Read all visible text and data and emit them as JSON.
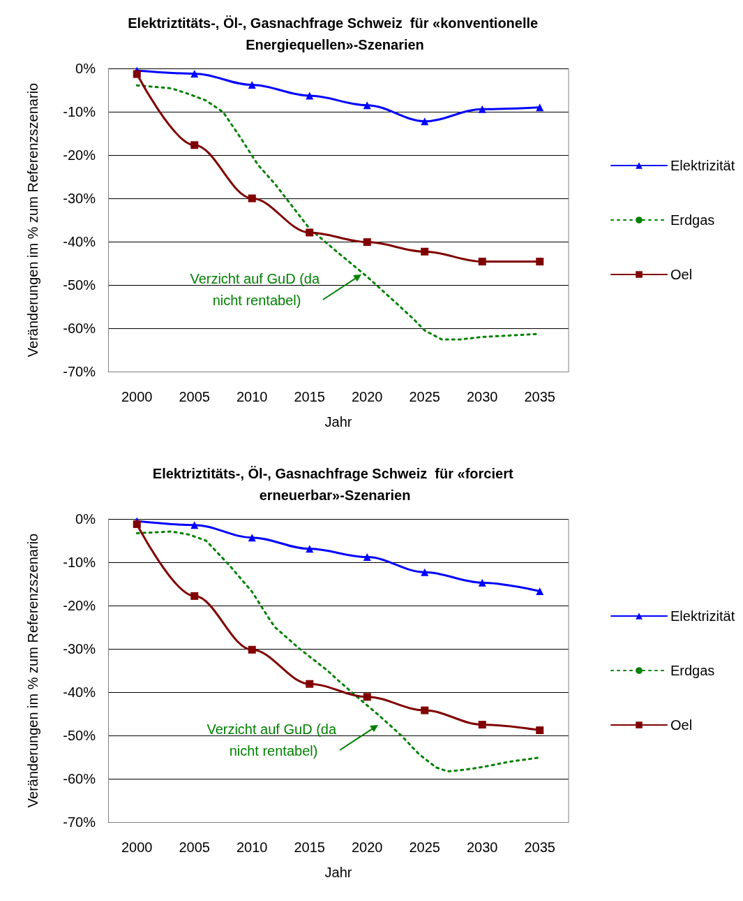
{
  "chart_data": [
    {
      "type": "line",
      "title": "Elektriztitäts-, Öl-, Gasnachfrage Schweiz  für «konventionelle Energiequellen»-Szenarien",
      "xlabel": "Jahr",
      "ylabel": "Veränderungen im % zum Referenzszenario",
      "xlim": [
        1997.5,
        2037.5
      ],
      "xticks": [
        2000,
        2005,
        2010,
        2015,
        2020,
        2025,
        2030,
        2035
      ],
      "ylim": [
        -70,
        0
      ],
      "yticks": [
        {
          "value": -70,
          "label": "-70%"
        },
        {
          "value": -60,
          "label": "-60%"
        },
        {
          "value": -50,
          "label": "-50%"
        },
        {
          "value": -40,
          "label": "-40%"
        },
        {
          "value": -30,
          "label": "-30%"
        },
        {
          "value": -20,
          "label": "-20%"
        },
        {
          "value": -10,
          "label": "-10%"
        },
        {
          "value": 0,
          "label": "0%"
        }
      ],
      "grid": "y",
      "legend": "right",
      "annotations": [
        "Verzicht auf GuD (da nicht rentabel)"
      ],
      "series": [
        {
          "name": "Elektrizität",
          "color": "#0000ff",
          "marker": "triangle",
          "line_style": "solid",
          "x": [
            2000,
            2005,
            2010,
            2015,
            2020,
            2025,
            2030,
            2035
          ],
          "values": [
            -0.5,
            -1.2,
            -3.8,
            -6.3,
            -8.5,
            -12.2,
            -9.4,
            -9.0
          ]
        },
        {
          "name": "Erdgas",
          "color": "#008000",
          "marker": "none",
          "line_style": "dotted",
          "x": [
            2000,
            2003,
            2004.5,
            2006,
            2007.5,
            2009,
            2010.5,
            2012,
            2015,
            2017.5,
            2020,
            2022,
            2024,
            2025,
            2026.5,
            2028,
            2030,
            2035
          ],
          "values": [
            -3.9,
            -4.6,
            -5.9,
            -7.4,
            -10.1,
            -16,
            -22.2,
            -26.7,
            -37,
            -42.6,
            -48.1,
            -52.9,
            -57.8,
            -60.5,
            -62.6,
            -62.6,
            -62.0,
            -61.3
          ]
        },
        {
          "name": "Oel",
          "color": "#800000",
          "marker": "square",
          "line_style": "solid",
          "x": [
            2000,
            2005,
            2010,
            2015,
            2020,
            2025,
            2030,
            2035
          ],
          "values": [
            -1.3,
            -17.7,
            -30.0,
            -37.9,
            -40.1,
            -42.3,
            -44.6,
            -44.6
          ]
        }
      ]
    },
    {
      "type": "line",
      "title": "Elektriztitäts-, Öl-, Gasnachfrage Schweiz  für «forciert erneuerbar»-Szenarien",
      "xlabel": "Jahr",
      "ylabel": "Veränderungen im % zum Referenzszenario",
      "xlim": [
        1997.5,
        2037.5
      ],
      "xticks": [
        2000,
        2005,
        2010,
        2015,
        2020,
        2025,
        2030,
        2035
      ],
      "ylim": [
        -70,
        0
      ],
      "yticks": [
        {
          "value": -70,
          "label": "-70%"
        },
        {
          "value": -60,
          "label": "-60%"
        },
        {
          "value": -50,
          "label": "-50%"
        },
        {
          "value": -40,
          "label": "-40%"
        },
        {
          "value": -30,
          "label": "-30%"
        },
        {
          "value": -20,
          "label": "-20%"
        },
        {
          "value": -10,
          "label": "-10%"
        },
        {
          "value": 0,
          "label": "0%"
        }
      ],
      "grid": "y",
      "legend": "right",
      "annotations": [
        "Verzicht auf GuD (da nicht rentabel)"
      ],
      "series": [
        {
          "name": "Elektrizität",
          "color": "#0000ff",
          "marker": "triangle",
          "line_style": "solid",
          "x": [
            2000,
            2005,
            2010,
            2015,
            2020,
            2025,
            2030,
            2035
          ],
          "values": [
            -0.5,
            -1.4,
            -4.3,
            -6.9,
            -8.8,
            -12.3,
            -14.7,
            -16.7
          ]
        },
        {
          "name": "Erdgas",
          "color": "#008000",
          "marker": "none",
          "line_style": "dotted",
          "x": [
            2000,
            2003,
            2004.5,
            2006,
            2008,
            2010,
            2011.5,
            2012,
            2014,
            2016.5,
            2017.5,
            2019,
            2021,
            2023,
            2024.5,
            2026,
            2027,
            2028.5,
            2030,
            2032.5,
            2035
          ],
          "values": [
            -3.3,
            -2.9,
            -3.6,
            -5.0,
            -10.6,
            -16.8,
            -23.1,
            -25,
            -29.7,
            -34.9,
            -37.3,
            -40.8,
            -45.3,
            -50.1,
            -54.3,
            -57.4,
            -58.3,
            -57.9,
            -57.3,
            -56.0,
            -55.1
          ]
        },
        {
          "name": "Oel",
          "color": "#800000",
          "marker": "square",
          "line_style": "solid",
          "x": [
            2000,
            2005,
            2010,
            2015,
            2020,
            2025,
            2030,
            2035
          ],
          "values": [
            -1.2,
            -17.8,
            -30.2,
            -38.1,
            -41.1,
            -44.2,
            -47.5,
            -48.8
          ]
        }
      ]
    }
  ]
}
